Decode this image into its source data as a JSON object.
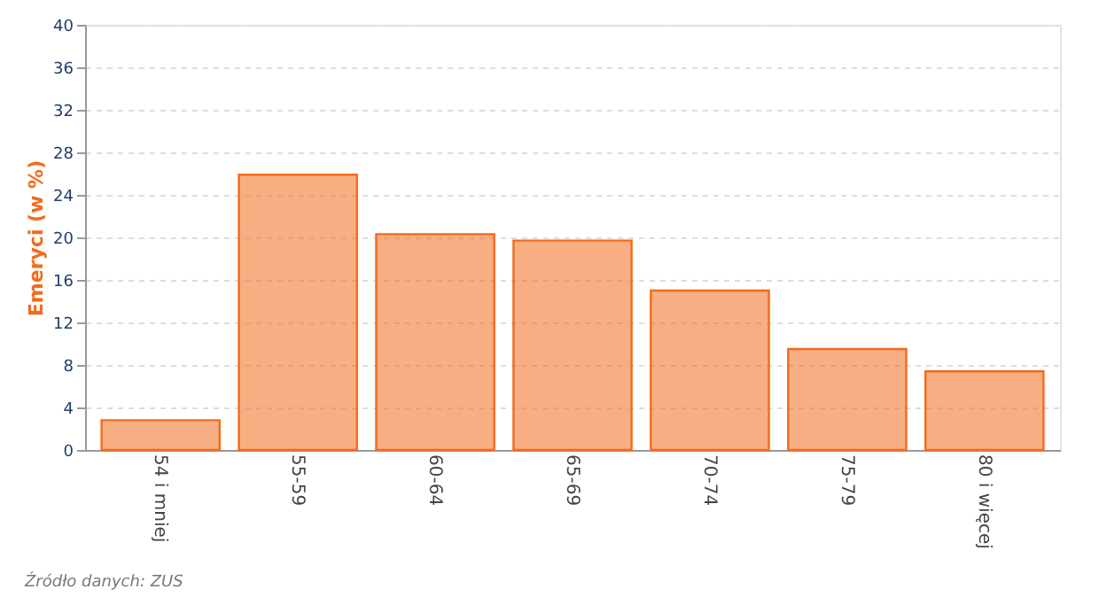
{
  "chart_data": {
    "type": "bar",
    "ylabel": "Emeryci (w %)",
    "categories": [
      "54 i mniej",
      "55-59",
      "60-64",
      "65-69",
      "70-74",
      "75-79",
      "80 i więcej"
    ],
    "values": [
      2.8,
      25.9,
      20.3,
      19.7,
      15.0,
      9.5,
      7.4
    ],
    "color": "#f26b1d",
    "ylim": [
      0,
      40
    ],
    "yticks": [
      0,
      4,
      8,
      12,
      16,
      20,
      24,
      28,
      32,
      36,
      40
    ],
    "grid": "y",
    "annotations": [
      "Źródło danych: ZUS"
    ]
  }
}
